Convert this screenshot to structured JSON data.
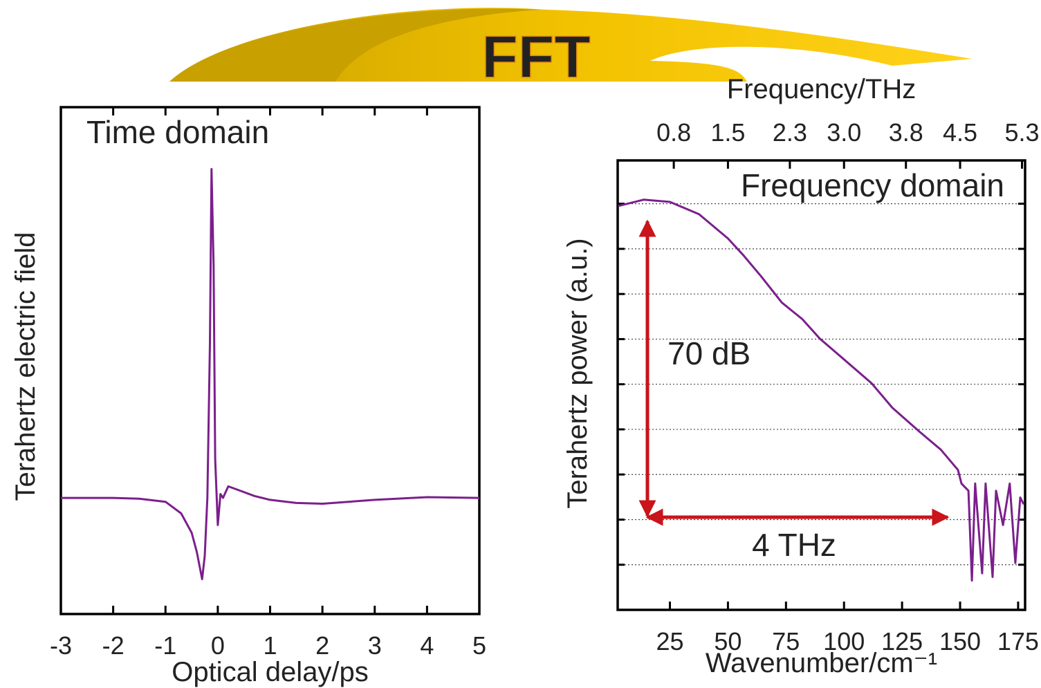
{
  "banner": {
    "text": "FFT"
  },
  "chart_data": [
    {
      "type": "line",
      "xlabel": "Optical delay/ps",
      "ylabel": "Terahertz electric field",
      "annotations": [
        {
          "text": "Time domain"
        }
      ],
      "x": [
        -3,
        -2,
        -1.5,
        -1,
        -0.7,
        -0.5,
        -0.4,
        -0.3,
        -0.25,
        -0.2,
        -0.15,
        -0.12,
        -0.08,
        -0.05,
        0,
        0.05,
        0.1,
        0.2,
        0.4,
        0.7,
        1,
        1.5,
        2,
        3,
        4,
        5
      ],
      "values": [
        0,
        0,
        -0.02,
        -0.1,
        -0.4,
        -0.9,
        -1.4,
        -2.1,
        -1.5,
        0,
        4,
        8.5,
        6,
        1,
        -0.7,
        0.1,
        0,
        0.3,
        0.2,
        0.05,
        -0.05,
        -0.13,
        -0.15,
        -0.05,
        0.02,
        0
      ],
      "color": "#7b1f8c",
      "xlim": [
        -3,
        5
      ],
      "ylim": [
        -3,
        10.1
      ],
      "xticks": [
        -3,
        -2,
        -1,
        0,
        1,
        2,
        3,
        4,
        5
      ]
    },
    {
      "type": "line",
      "xlabel": "Wavenumber/cm⁻¹",
      "x2label": "Frequency/THz",
      "ylabel": "Terahertz power (a.u.)",
      "annotations": [
        {
          "text": "Frequency domain"
        },
        {
          "text": "70 dB"
        },
        {
          "text": "4 THz"
        }
      ],
      "x": [
        2.7,
        13.7,
        25,
        37.5,
        50,
        56.8,
        64.3,
        73.2,
        82.1,
        89.6,
        100,
        111.9,
        120.8,
        132.7,
        141.7,
        149.1,
        150.6,
        153.6,
        155.1,
        156.5,
        159.5,
        161,
        164,
        165.5,
        168.5,
        171.4,
        173.8,
        175.9,
        177.4
      ],
      "values": [
        69.5,
        70.9,
        70.4,
        67.7,
        62.3,
        58.5,
        53.9,
        48.1,
        44.4,
        40.1,
        35.5,
        30.2,
        24.8,
        19.4,
        15.5,
        11,
        8,
        6.4,
        -13.5,
        8,
        -11.9,
        8,
        -12.7,
        6.4,
        -1.2,
        8,
        -9.6,
        4.9,
        3.4
      ],
      "color": "#7b1f8c",
      "xlim": [
        2.5,
        178
      ],
      "ylim": [
        -20,
        79.6
      ],
      "xticks": [
        25,
        50,
        75,
        100,
        125,
        150,
        175
      ],
      "x2lim": [
        0.075,
        5.34
      ],
      "x2ticks": [
        0.8,
        1.5,
        2.3,
        {
          "value": 3,
          "label": "3.0"
        },
        3.8,
        4.5,
        5.3
      ],
      "yticks": [
        -10,
        0,
        10,
        20,
        30,
        40,
        50,
        60,
        70
      ],
      "ytick_labels": false,
      "grid": true
    }
  ]
}
